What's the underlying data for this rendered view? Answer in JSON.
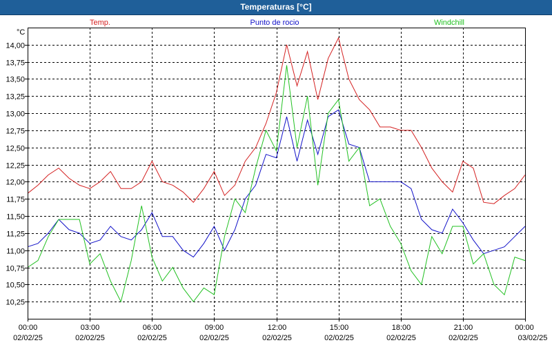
{
  "window": {
    "title": "Temperaturas [°C]"
  },
  "chart_data": {
    "type": "line",
    "title": "Temperaturas [°C]",
    "yunit": "°C",
    "ylim": [
      10.0,
      14.25
    ],
    "xlim": [
      0,
      24
    ],
    "grid": true,
    "legend_position": "top",
    "y_ticks": [
      "14,00",
      "13,75",
      "13,50",
      "13,25",
      "13,00",
      "12,75",
      "12,50",
      "12,25",
      "12,00",
      "11,75",
      "11,50",
      "11,25",
      "11,00",
      "10,75",
      "10,50",
      "10,25"
    ],
    "y_tick_values": [
      14.0,
      13.75,
      13.5,
      13.25,
      13.0,
      12.75,
      12.5,
      12.25,
      12.0,
      11.75,
      11.5,
      11.25,
      11.0,
      10.75,
      10.5,
      10.25
    ],
    "x_ticks": [
      {
        "time": "00:00",
        "date": "02/02/25"
      },
      {
        "time": "03:00",
        "date": "02/02/25"
      },
      {
        "time": "06:00",
        "date": "02/02/25"
      },
      {
        "time": "09:00",
        "date": "02/02/25"
      },
      {
        "time": "12:00",
        "date": "02/02/25"
      },
      {
        "time": "15:00",
        "date": "02/02/25"
      },
      {
        "time": "18:00",
        "date": "02/02/25"
      },
      {
        "time": "21:00",
        "date": "02/02/25"
      },
      {
        "time": "00:00",
        "date": "03/02/25"
      }
    ],
    "x_tick_hours": [
      0,
      3,
      6,
      9,
      12,
      15,
      18,
      21,
      24
    ],
    "x": [
      0,
      0.5,
      1,
      1.5,
      2,
      2.5,
      3,
      3.5,
      4,
      4.5,
      5,
      5.5,
      6,
      6.5,
      7,
      7.5,
      8,
      8.5,
      9,
      9.5,
      10,
      10.5,
      11,
      11.5,
      12,
      12.5,
      13,
      13.5,
      14,
      14.5,
      15,
      15.5,
      16,
      16.5,
      17,
      17.5,
      18,
      18.5,
      19,
      19.5,
      20,
      20.5,
      21,
      21.5,
      22,
      22.5,
      23,
      23.5,
      24
    ],
    "series": [
      {
        "name": "Temp.",
        "color": "#d42020",
        "values": [
          11.83,
          11.95,
          12.1,
          12.2,
          12.05,
          11.95,
          11.9,
          12.0,
          12.15,
          11.9,
          11.9,
          12.0,
          12.3,
          12.0,
          11.95,
          11.85,
          11.7,
          11.9,
          12.15,
          11.8,
          11.95,
          12.3,
          12.5,
          12.85,
          13.3,
          14.0,
          13.4,
          13.9,
          13.2,
          13.8,
          14.1,
          13.5,
          13.2,
          13.05,
          12.8,
          12.8,
          12.75,
          12.75,
          12.5,
          12.2,
          12.0,
          11.85,
          12.3,
          12.2,
          11.7,
          11.68,
          11.8,
          11.9,
          12.1
        ]
      },
      {
        "name": "Punto de rocio",
        "color": "#1010c8",
        "values": [
          11.05,
          11.1,
          11.25,
          11.45,
          11.3,
          11.25,
          11.1,
          11.15,
          11.35,
          11.2,
          11.15,
          11.3,
          11.55,
          11.2,
          11.2,
          11.0,
          10.9,
          11.1,
          11.35,
          11.0,
          11.3,
          11.75,
          11.95,
          12.4,
          12.35,
          12.95,
          12.3,
          12.9,
          12.4,
          12.95,
          13.05,
          12.55,
          12.5,
          12.0,
          12.0,
          12.0,
          12.0,
          11.9,
          11.45,
          11.3,
          11.25,
          11.6,
          11.4,
          11.15,
          10.95,
          11.0,
          11.05,
          11.2,
          11.35
        ]
      },
      {
        "name": "Windchill",
        "color": "#20c020",
        "values": [
          10.75,
          10.85,
          11.2,
          11.45,
          11.45,
          11.45,
          10.8,
          10.95,
          10.55,
          10.25,
          10.85,
          11.65,
          10.9,
          10.55,
          10.75,
          10.45,
          10.25,
          10.45,
          10.35,
          11.2,
          11.75,
          11.55,
          12.2,
          12.75,
          12.45,
          13.7,
          12.5,
          13.25,
          11.95,
          13.0,
          13.2,
          12.3,
          12.5,
          11.65,
          11.75,
          11.35,
          11.1,
          10.7,
          10.5,
          11.2,
          10.95,
          11.35,
          11.35,
          10.8,
          10.95,
          10.5,
          10.35,
          10.9,
          10.85
        ]
      }
    ]
  }
}
